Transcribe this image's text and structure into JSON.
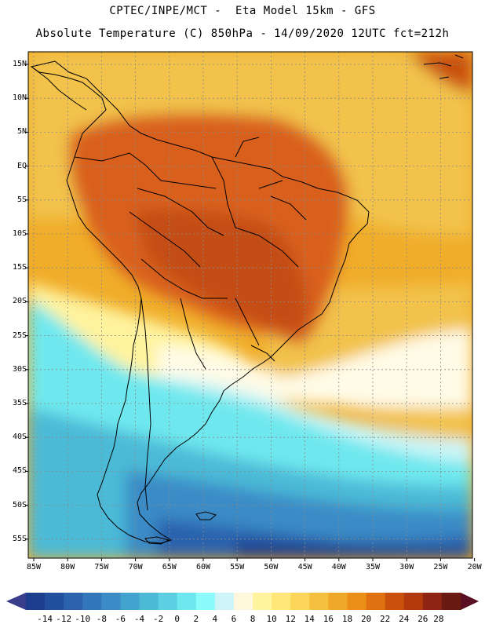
{
  "title_line1": "CPTEC/INPE/MCT -  Eta Model 15km - GFS",
  "title_line2": "Absolute Temperature (C) 850hPa - 14/09/2020 12UTC fct=212h",
  "lat_labels": [
    "15N",
    "10N",
    "5N",
    "EQ",
    "5S",
    "10S",
    "15S",
    "20S",
    "25S",
    "30S",
    "35S",
    "40S",
    "45S",
    "50S",
    "55S"
  ],
  "lon_labels": [
    "85W",
    "80W",
    "75W",
    "70W",
    "65W",
    "60W",
    "55W",
    "50W",
    "45W",
    "40W",
    "35W",
    "30W",
    "25W",
    "20W"
  ],
  "colorbar": {
    "labels": [
      "-14",
      "-12",
      "-10",
      "-8",
      "-6",
      "-4",
      "-2",
      "0",
      "2",
      "4",
      "6",
      "8",
      "10",
      "12",
      "14",
      "16",
      "18",
      "20",
      "22",
      "24",
      "26",
      "28"
    ],
    "colors": [
      "#1d3d8f",
      "#23509e",
      "#2b62ad",
      "#3276bb",
      "#3a8bc6",
      "#43a3cf",
      "#4cbad7",
      "#5ad0e2",
      "#6ee8ee",
      "#8bfbfb",
      "#cdf5f7",
      "#fff7dc",
      "#fff39e",
      "#ffe777",
      "#fcd65a",
      "#f6c03f",
      "#f0a828",
      "#eb8f18",
      "#e07110",
      "#c9510c",
      "#b23a0d",
      "#8e2411",
      "#6a1a13"
    ],
    "under_color": "#3a3c8c",
    "over_color": "#5a0f24"
  },
  "map_colors": {
    "ocean_warm": "#f0ad2a",
    "ocean_mid": "#f2c24b",
    "land_hot": "#d9611a",
    "land_very_hot": "#c44e12",
    "land_warm": "#e98a22",
    "pale_yellow": "#fff39e",
    "cream": "#fffbe6",
    "pale_cyan": "#cdf5f7",
    "cyan": "#6ee8ee",
    "light_blue": "#4cbad7",
    "mid_blue": "#3a8bc6",
    "deep_blue": "#2b62ad",
    "darkest_blue": "#1d3d8f",
    "hot_corner": "#c9510c"
  }
}
